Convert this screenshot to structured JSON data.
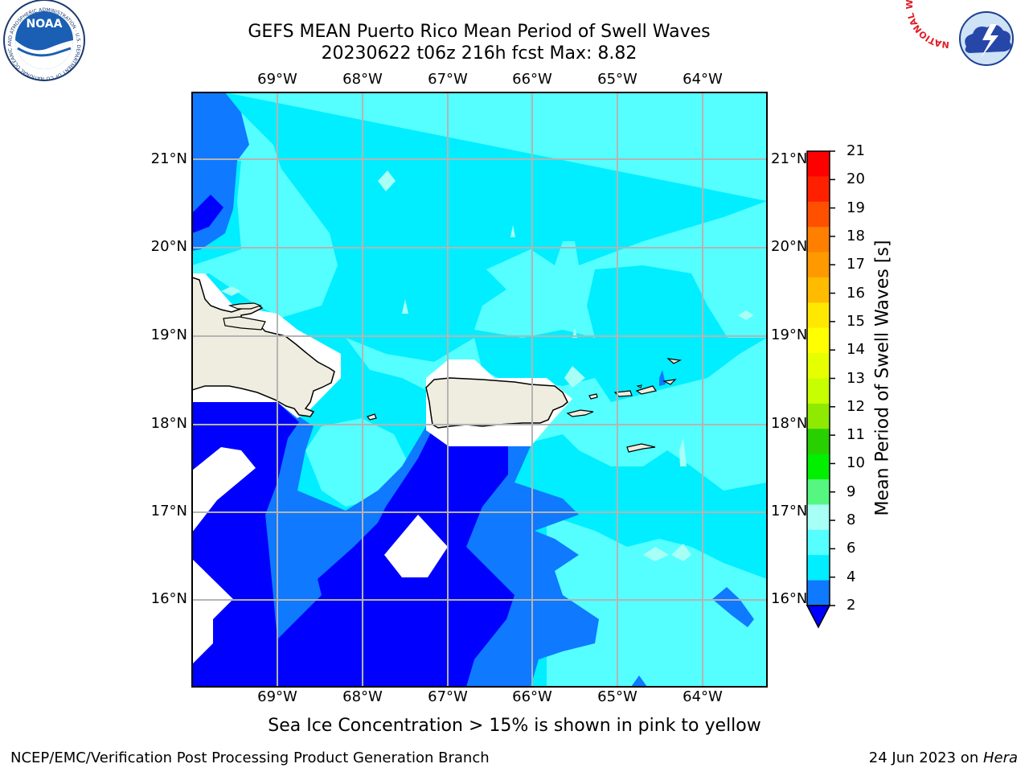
{
  "title": {
    "line1": "GEFS MEAN Puerto Rico Mean Period of Swell Waves",
    "line2": "20230622 t06z 216h fcst   Max: 8.82"
  },
  "map": {
    "lon_labels": [
      "69°W",
      "68°W",
      "67°W",
      "66°W",
      "65°W",
      "64°W"
    ],
    "lat_labels": [
      "21°N",
      "20°N",
      "19°N",
      "18°N",
      "17°N",
      "16°N"
    ],
    "colors": {
      "ocean_2_4": "#0f79ff",
      "ocean_lt2": "#0000ff",
      "ocean_4_6": "#00eeff",
      "ocean_6_8": "#55ffff",
      "ocean_8_9": "#a8fff6",
      "land": "#eeeddf",
      "grid": "#b4b4b4"
    }
  },
  "colorbar": {
    "title": "Mean Period of Swell Waves [s]",
    "ticks": [
      "21",
      "20",
      "19",
      "18",
      "17",
      "16",
      "15",
      "14",
      "13",
      "12",
      "11",
      "10",
      "9",
      "8",
      "6",
      "4",
      "2"
    ],
    "colors": [
      "#ff0000",
      "#ff2000",
      "#ff5000",
      "#ff7f00",
      "#ff9900",
      "#ffbb00",
      "#ffe800",
      "#ffff00",
      "#e6ff00",
      "#c8ff00",
      "#8eea00",
      "#28d000",
      "#00f000",
      "#55f780",
      "#a8fff6",
      "#55ffff",
      "#00eeff",
      "#0f79ff"
    ],
    "extend_color": "#0000ff"
  },
  "footnote": "Sea Ice Concentration > 15% is shown in pink to yellow",
  "footer": {
    "left": "NCEP/EMC/Verification Post Processing Product Generation Branch",
    "right_prefix": "24 Jun 2023 on ",
    "right_machine": "Hera"
  },
  "logos": {
    "noaa": "NOAA",
    "noaa_ring": "NATIONAL OCEANIC AND ATMOSPHERIC ADMINISTRATION · U.S. DEPARTMENT OF COMMERCE",
    "nws_ring": "NATIONAL WEATHER SERVICE"
  }
}
